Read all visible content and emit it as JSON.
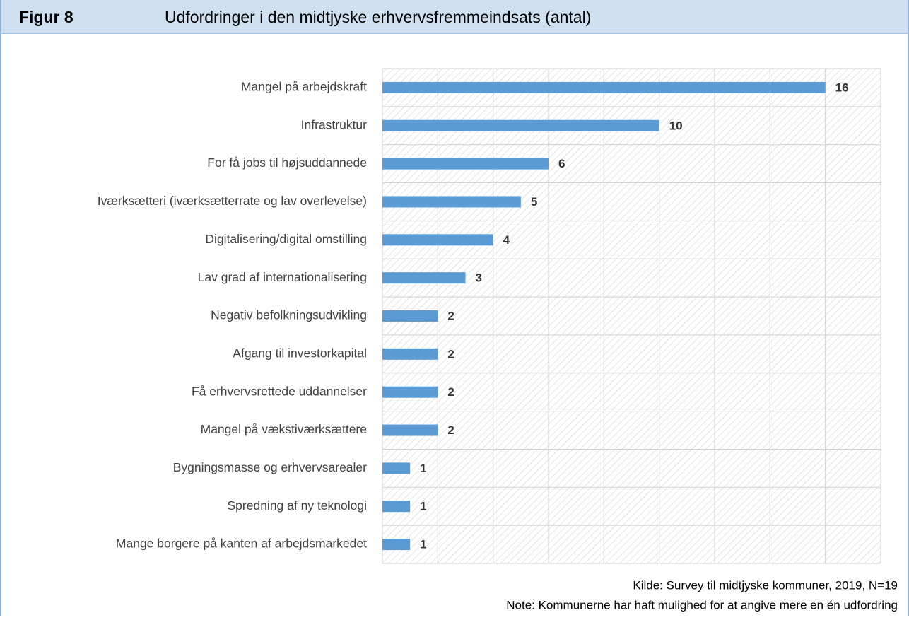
{
  "figure_label": "Figur 8",
  "chart_data": {
    "type": "barh",
    "title": "Udfordringer i den midtjyske erhvervsfremmeindsats (antal)",
    "categories": [
      "Mangel på arbejdskraft",
      "Infrastruktur",
      "For få jobs til højsuddannede",
      "Iværksætteri (iværksætterrate og lav overlevelse)",
      "Digitalisering/digital omstilling",
      "Lav grad af internationalisering",
      "Negativ befolkningsudvikling",
      "Afgang til investorkapital",
      "Få erhvervsrettede uddannelser",
      "Mangel på vækstiværksættere",
      "Bygningsmasse og erhvervsarealer",
      "Spredning af ny teknologi",
      "Mange borgere på kanten af arbejdsmarkedet"
    ],
    "values": [
      16,
      10,
      6,
      5,
      4,
      3,
      2,
      2,
      2,
      2,
      1,
      1,
      1
    ],
    "color": "#5b9bd5",
    "xlim": [
      0,
      18
    ],
    "xticks": [
      0,
      2,
      4,
      6,
      8,
      10,
      12,
      14,
      16,
      18
    ],
    "grid": true,
    "source": "Kilde: Survey til midtjyske kommuner, 2019, N=19",
    "note": "Note: Kommunerne har haft mulighed for at angive mere en én udfordring"
  }
}
